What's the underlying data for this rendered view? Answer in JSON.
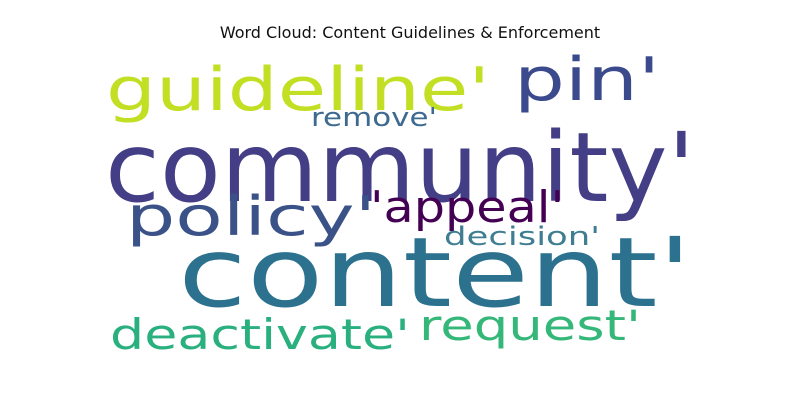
{
  "chart_data": {
    "type": "wordcloud",
    "title": "Word Cloud: Content Guidelines & Enforcement",
    "words": [
      {
        "text": "community'",
        "color": "#433e85"
      },
      {
        "text": "content'",
        "color": "#2c728e"
      },
      {
        "text": "guideline'",
        "color": "#c2df23"
      },
      {
        "text": "pin'",
        "color": "#3b4a8c"
      },
      {
        "text": "policy'",
        "color": "#3b5289"
      },
      {
        "text": "'appeal'",
        "color": "#440154"
      },
      {
        "text": "remove'",
        "color": "#3e6990"
      },
      {
        "text": "decision'",
        "color": "#3f7d92"
      },
      {
        "text": "deactivate'",
        "color": "#2ab07f"
      },
      {
        "text": "request'",
        "color": "#35b779"
      }
    ]
  }
}
